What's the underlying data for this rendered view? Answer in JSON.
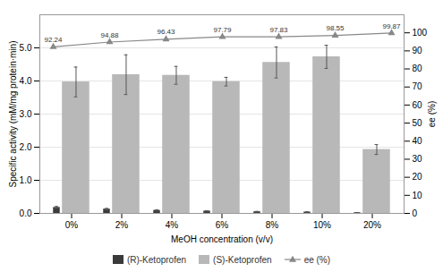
{
  "chart_data": {
    "type": "bar",
    "categories": [
      "0%",
      "2%",
      "4%",
      "6%",
      "8%",
      "10%",
      "20%"
    ],
    "xlabel": "MeOH concentration (v/v)",
    "ylabel": "Specific activity (mM/mg protein·min)",
    "y2label": "ee (%)",
    "ylim": [
      0,
      6
    ],
    "yticks": [
      0,
      1,
      2,
      3,
      4,
      5
    ],
    "y2lim": [
      0,
      110
    ],
    "y2ticks": [
      0,
      10,
      20,
      30,
      40,
      50,
      60,
      70,
      80,
      90,
      100
    ],
    "grid": true,
    "legend": "bottom",
    "series": [
      {
        "name": "(R)-Ketoprofen",
        "color": "#3a3a3a",
        "values": [
          0.18,
          0.13,
          0.09,
          0.07,
          0.05,
          0.04,
          0.02
        ],
        "errors": [
          0.03,
          0.02,
          0.02,
          0.01,
          0.01,
          0.01,
          0.005
        ]
      },
      {
        "name": "(S)-Ketoprofen",
        "color": "#b8b8b8",
        "values": [
          3.97,
          4.19,
          4.17,
          3.98,
          4.56,
          4.73,
          1.93
        ],
        "errors": [
          0.45,
          0.6,
          0.27,
          0.13,
          0.47,
          0.35,
          0.15
        ]
      },
      {
        "name": "ee (%)",
        "type": "line",
        "axis": "y2",
        "color": "#888888",
        "marker": "triangle",
        "data_labels": true,
        "values": [
          92.24,
          94.88,
          96.43,
          97.79,
          97.83,
          98.55,
          99.87
        ]
      }
    ]
  }
}
